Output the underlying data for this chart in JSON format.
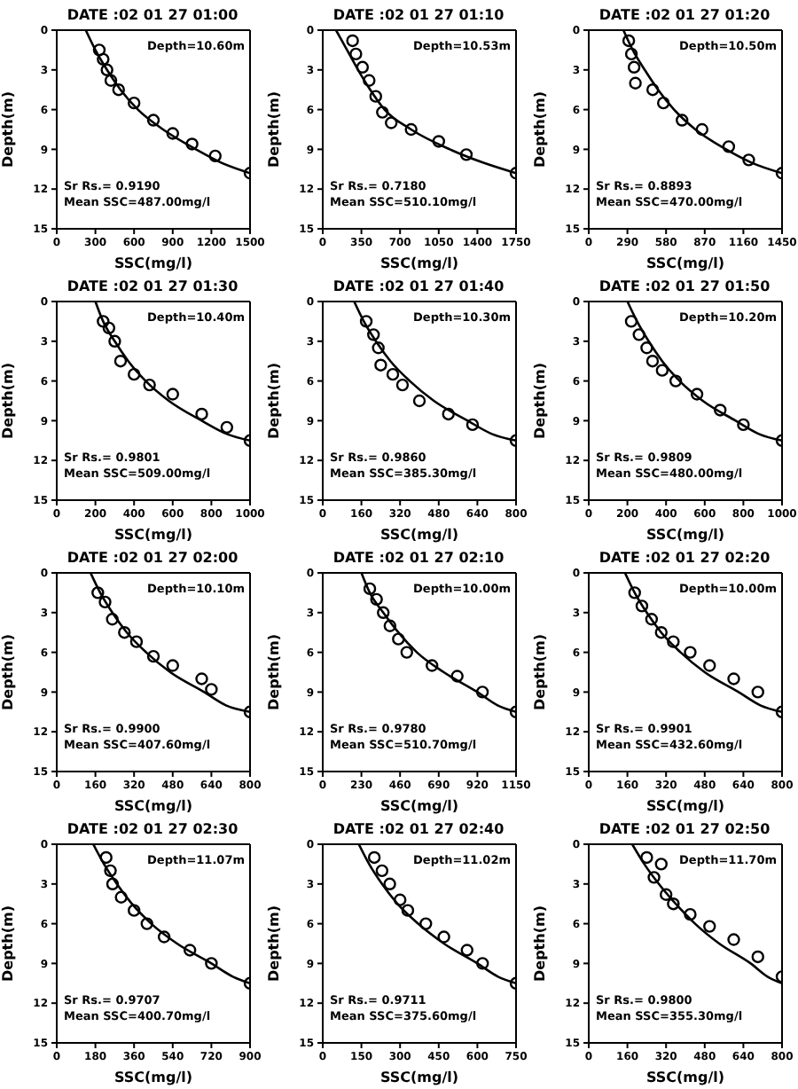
{
  "chart_data": [
    {
      "type": "scatter",
      "title": "DATE :02 01 27 01:00",
      "xlabel": "SSC(mg/l)",
      "ylabel": "Depth(m)",
      "xlim": [
        0,
        1500
      ],
      "xticks": [
        0,
        300,
        600,
        900,
        1200,
        1500
      ],
      "ylim": [
        15,
        0
      ],
      "yticks": [
        0,
        3,
        6,
        9,
        12,
        15
      ],
      "annotations": [
        "Depth=10.60m",
        "Sr Rs.= 0.9190",
        "Mean SSC=487.00mg/l"
      ],
      "series": [
        {
          "type": "line",
          "color": "#000000",
          "line_style": "solid",
          "marker": "none",
          "x": [
            225,
            300,
            390,
            495,
            630,
            825,
            1080,
            1275,
            1500
          ],
          "values": [
            0,
            1.5,
            3,
            4.5,
            6,
            7.5,
            9,
            10,
            10.8
          ]
        },
        {
          "color": "#000000",
          "marker": "circle",
          "x": [
            330,
            360,
            390,
            420,
            480,
            600,
            750,
            900,
            1050,
            1230,
            1500
          ],
          "values": [
            1.5,
            2.2,
            3,
            3.8,
            4.5,
            5.5,
            6.8,
            7.8,
            8.6,
            9.5,
            10.8
          ]
        }
      ]
    },
    {
      "type": "scatter",
      "title": "DATE :02 01 27 01:10",
      "xlabel": "SSC(mg/l)",
      "ylabel": "Depth(m)",
      "xlim": [
        0,
        1750
      ],
      "xticks": [
        0,
        350,
        700,
        1050,
        1400,
        1750
      ],
      "ylim": [
        15,
        0
      ],
      "yticks": [
        0,
        3,
        6,
        9,
        12,
        15
      ],
      "annotations": [
        "Depth=10.53m",
        "Sr Rs.= 0.7180",
        "Mean SSC=510.10mg/l"
      ],
      "series": [
        {
          "type": "line",
          "color": "#000000",
          "line_style": "solid",
          "marker": "none",
          "x": [
            120,
            220,
            320,
            430,
            560,
            800,
            1150,
            1450,
            1750
          ],
          "values": [
            0,
            1.5,
            3,
            4.5,
            6,
            7.5,
            9,
            10,
            10.8
          ]
        },
        {
          "color": "#000000",
          "marker": "circle",
          "x": [
            270,
            300,
            360,
            420,
            480,
            540,
            620,
            800,
            1050,
            1300,
            1750
          ],
          "values": [
            0.8,
            1.8,
            2.8,
            3.8,
            5,
            6.2,
            7,
            7.5,
            8.4,
            9.4,
            10.8
          ]
        }
      ]
    },
    {
      "type": "scatter",
      "title": "DATE :02 01 27 01:20",
      "xlabel": "SSC(mg/l)",
      "ylabel": "Depth(m)",
      "xlim": [
        0,
        1450
      ],
      "xticks": [
        0,
        290,
        580,
        870,
        1160,
        1450
      ],
      "ylim": [
        15,
        0
      ],
      "yticks": [
        0,
        3,
        6,
        9,
        12,
        15
      ],
      "annotations": [
        "Depth=10.50m",
        "Sr Rs.= 0.8893",
        "Mean SSC=470.00mg/l"
      ],
      "series": [
        {
          "type": "line",
          "color": "#000000",
          "line_style": "solid",
          "marker": "none",
          "x": [
            260,
            330,
            420,
            520,
            640,
            800,
            1030,
            1220,
            1450
          ],
          "values": [
            0,
            1.5,
            3,
            4.5,
            6,
            7.5,
            9,
            10,
            10.8
          ]
        },
        {
          "color": "#000000",
          "marker": "circle",
          "x": [
            300,
            320,
            340,
            350,
            480,
            560,
            700,
            850,
            1050,
            1200,
            1450
          ],
          "values": [
            0.8,
            1.8,
            2.8,
            4,
            4.5,
            5.5,
            6.8,
            7.5,
            8.8,
            9.8,
            10.8
          ]
        }
      ]
    },
    {
      "type": "scatter",
      "title": "DATE :02 01 27 01:30",
      "xlabel": "SSC(mg/l)",
      "ylabel": "Depth(m)",
      "xlim": [
        0,
        1000
      ],
      "xticks": [
        0,
        200,
        400,
        600,
        800,
        1000
      ],
      "ylim": [
        15,
        0
      ],
      "yticks": [
        0,
        3,
        6,
        9,
        12,
        15
      ],
      "annotations": [
        "Depth=10.40m",
        "Sr Rs.= 0.9801",
        "Mean SSC=509.00mg/l"
      ],
      "series": [
        {
          "type": "line",
          "color": "#000000",
          "line_style": "solid",
          "marker": "none",
          "x": [
            200,
            240,
            300,
            370,
            460,
            580,
            750,
            880,
            1000
          ],
          "values": [
            0,
            1.5,
            3,
            4.5,
            6,
            7.5,
            9,
            10,
            10.5
          ]
        },
        {
          "color": "#000000",
          "marker": "circle",
          "x": [
            240,
            270,
            300,
            330,
            400,
            480,
            600,
            750,
            880,
            1000
          ],
          "values": [
            1.5,
            2,
            3,
            4.5,
            5.5,
            6.3,
            7,
            8.5,
            9.5,
            10.5
          ]
        }
      ]
    },
    {
      "type": "scatter",
      "title": "DATE :02 01 27 01:40",
      "xlabel": "SSC(mg/l)",
      "ylabel": "Depth(m)",
      "xlim": [
        0,
        800
      ],
      "xticks": [
        0,
        160,
        320,
        480,
        640,
        800
      ],
      "ylim": [
        15,
        0
      ],
      "yticks": [
        0,
        3,
        6,
        9,
        12,
        15
      ],
      "annotations": [
        "Depth=10.30m",
        "Sr Rs.= 0.9860",
        "Mean SSC=385.30mg/l"
      ],
      "series": [
        {
          "type": "line",
          "color": "#000000",
          "line_style": "solid",
          "marker": "none",
          "x": [
            130,
            170,
            220,
            280,
            360,
            460,
            600,
            700,
            800
          ],
          "values": [
            0,
            1.5,
            3,
            4.5,
            6,
            7.5,
            9,
            10,
            10.5
          ]
        },
        {
          "color": "#000000",
          "marker": "circle",
          "x": [
            180,
            210,
            230,
            240,
            290,
            330,
            400,
            520,
            620,
            800
          ],
          "values": [
            1.5,
            2.5,
            3.5,
            4.8,
            5.5,
            6.3,
            7.5,
            8.5,
            9.3,
            10.5
          ]
        }
      ]
    },
    {
      "type": "scatter",
      "title": "DATE :02 01 27 01:50",
      "xlabel": "SSC(mg/l)",
      "ylabel": "Depth(m)",
      "xlim": [
        0,
        1000
      ],
      "xticks": [
        0,
        200,
        400,
        600,
        800,
        1000
      ],
      "ylim": [
        15,
        0
      ],
      "yticks": [
        0,
        3,
        6,
        9,
        12,
        15
      ],
      "annotations": [
        "Depth=10.20m",
        "Sr Rs.= 0.9809",
        "Mean SSC=480.00mg/l"
      ],
      "series": [
        {
          "type": "line",
          "color": "#000000",
          "line_style": "solid",
          "marker": "none",
          "x": [
            200,
            250,
            310,
            380,
            470,
            590,
            760,
            880,
            1000
          ],
          "values": [
            0,
            1.5,
            3,
            4.5,
            6,
            7.5,
            9,
            10,
            10.5
          ]
        },
        {
          "color": "#000000",
          "marker": "circle",
          "x": [
            220,
            260,
            300,
            330,
            380,
            450,
            560,
            680,
            800,
            1000
          ],
          "values": [
            1.5,
            2.5,
            3.5,
            4.5,
            5.2,
            6,
            7,
            8.2,
            9.3,
            10.5
          ]
        }
      ]
    },
    {
      "type": "scatter",
      "title": "DATE :02 01 27 02:00",
      "xlabel": "SSC(mg/l)",
      "ylabel": "Depth(m)",
      "xlim": [
        0,
        800
      ],
      "xticks": [
        0,
        160,
        320,
        480,
        640,
        800
      ],
      "ylim": [
        15,
        0
      ],
      "yticks": [
        0,
        3,
        6,
        9,
        12,
        15
      ],
      "annotations": [
        "Depth=10.10m",
        "Sr Rs.= 0.9900",
        "Mean SSC=407.60mg/l"
      ],
      "series": [
        {
          "type": "line",
          "color": "#000000",
          "line_style": "solid",
          "marker": "none",
          "x": [
            140,
            180,
            230,
            290,
            370,
            470,
            610,
            700,
            800
          ],
          "values": [
            0,
            1.5,
            3,
            4.5,
            6,
            7.5,
            9,
            10,
            10.5
          ]
        },
        {
          "color": "#000000",
          "marker": "circle",
          "x": [
            170,
            200,
            230,
            280,
            330,
            400,
            480,
            600,
            640,
            800
          ],
          "values": [
            1.5,
            2.2,
            3.5,
            4.5,
            5.2,
            6.3,
            7,
            8,
            8.8,
            10.5
          ]
        }
      ]
    },
    {
      "type": "scatter",
      "title": "DATE :02 01 27 02:10",
      "xlabel": "SSC(mg/l)",
      "ylabel": "Depth(m)",
      "xlim": [
        0,
        1150
      ],
      "xticks": [
        0,
        230,
        460,
        690,
        920,
        1150
      ],
      "ylim": [
        15,
        0
      ],
      "yticks": [
        0,
        3,
        6,
        9,
        12,
        15
      ],
      "annotations": [
        "Depth=10.00m",
        "Sr Rs.= 0.9780",
        "Mean SSC=510.70mg/l"
      ],
      "series": [
        {
          "type": "line",
          "color": "#000000",
          "line_style": "solid",
          "marker": "none",
          "x": [
            230,
            280,
            360,
            450,
            560,
            720,
            920,
            1040,
            1150
          ],
          "values": [
            0,
            1.5,
            3,
            4.5,
            6,
            7.5,
            9,
            10,
            10.5
          ]
        },
        {
          "color": "#000000",
          "marker": "circle",
          "x": [
            280,
            320,
            360,
            400,
            450,
            500,
            650,
            800,
            950,
            1150
          ],
          "values": [
            1.2,
            2,
            3,
            4,
            5,
            6,
            7,
            7.8,
            9,
            10.5
          ]
        }
      ]
    },
    {
      "type": "scatter",
      "title": "DATE :02 01 27 02:20",
      "xlabel": "SSC(mg/l)",
      "ylabel": "Depth(m)",
      "xlim": [
        0,
        800
      ],
      "xticks": [
        0,
        160,
        320,
        480,
        640,
        800
      ],
      "ylim": [
        15,
        0
      ],
      "yticks": [
        0,
        3,
        6,
        9,
        12,
        15
      ],
      "annotations": [
        "Depth=10.00m",
        "Sr Rs.= 0.9901",
        "Mean SSC=432.60mg/l"
      ],
      "series": [
        {
          "type": "line",
          "color": "#000000",
          "line_style": "solid",
          "marker": "none",
          "x": [
            150,
            190,
            240,
            300,
            380,
            480,
            620,
            710,
            800
          ],
          "values": [
            0,
            1.5,
            3,
            4.5,
            6,
            7.5,
            9,
            10,
            10.5
          ]
        },
        {
          "color": "#000000",
          "marker": "circle",
          "x": [
            190,
            220,
            260,
            300,
            350,
            420,
            500,
            600,
            700,
            800
          ],
          "values": [
            1.5,
            2.5,
            3.5,
            4.5,
            5.2,
            6,
            7,
            8,
            9,
            10.5
          ]
        }
      ]
    },
    {
      "type": "scatter",
      "title": "DATE :02 01 27 02:30",
      "xlabel": "SSC(mg/l)",
      "ylabel": "Depth(m)",
      "xlim": [
        0,
        900
      ],
      "xticks": [
        0,
        180,
        360,
        540,
        720,
        900
      ],
      "ylim": [
        15,
        0
      ],
      "yticks": [
        0,
        3,
        6,
        9,
        12,
        15
      ],
      "annotations": [
        "Depth=11.07m",
        "Sr Rs.= 0.9707",
        "Mean SSC=400.70mg/l"
      ],
      "series": [
        {
          "type": "line",
          "color": "#000000",
          "line_style": "solid",
          "marker": "none",
          "x": [
            170,
            220,
            280,
            350,
            440,
            560,
            720,
            820,
            900
          ],
          "values": [
            0,
            1.5,
            3,
            4.5,
            6,
            7.5,
            9,
            10,
            10.5
          ]
        },
        {
          "color": "#000000",
          "marker": "circle",
          "x": [
            230,
            250,
            260,
            300,
            360,
            420,
            500,
            620,
            720,
            900
          ],
          "values": [
            1,
            2,
            3,
            4,
            5,
            6,
            7,
            8,
            9,
            10.5
          ]
        }
      ]
    },
    {
      "type": "scatter",
      "title": "DATE :02 01 27 02:40",
      "xlabel": "SSC(mg/l)",
      "ylabel": "Depth(m)",
      "xlim": [
        0,
        750
      ],
      "xticks": [
        0,
        150,
        300,
        450,
        600,
        750
      ],
      "ylim": [
        15,
        0
      ],
      "yticks": [
        0,
        3,
        6,
        9,
        12,
        15
      ],
      "annotations": [
        "Depth=11.02m",
        "Sr Rs.= 0.9711",
        "Mean SSC=375.60mg/l"
      ],
      "series": [
        {
          "type": "line",
          "color": "#000000",
          "line_style": "solid",
          "marker": "none",
          "x": [
            140,
            180,
            230,
            290,
            370,
            470,
            600,
            680,
            750
          ],
          "values": [
            0,
            1.5,
            3,
            4.5,
            6,
            7.5,
            9,
            10,
            10.5
          ]
        },
        {
          "color": "#000000",
          "marker": "circle",
          "x": [
            200,
            230,
            260,
            300,
            330,
            400,
            470,
            560,
            620,
            750
          ],
          "values": [
            1,
            2,
            3,
            4.2,
            5,
            6,
            7,
            8,
            9,
            10.5
          ]
        }
      ]
    },
    {
      "type": "scatter",
      "title": "DATE :02 01 27 02:50",
      "xlabel": "SSC(mg/l)",
      "ylabel": "Depth(m)",
      "xlim": [
        0,
        800
      ],
      "xticks": [
        0,
        160,
        320,
        480,
        640,
        800
      ],
      "ylim": [
        15,
        0
      ],
      "yticks": [
        0,
        3,
        6,
        9,
        12,
        15
      ],
      "annotations": [
        "Depth=11.70m",
        "Sr Rs.= 0.9800",
        "Mean SSC=355.30mg/l"
      ],
      "series": [
        {
          "type": "line",
          "color": "#000000",
          "line_style": "solid",
          "marker": "none",
          "x": [
            180,
            230,
            290,
            360,
            440,
            540,
            670,
            740,
            800
          ],
          "values": [
            0,
            1.5,
            3,
            4.5,
            6,
            7.5,
            9,
            10,
            10.5
          ]
        },
        {
          "color": "#000000",
          "marker": "circle",
          "x": [
            240,
            300,
            270,
            320,
            350,
            420,
            500,
            600,
            700,
            800
          ],
          "values": [
            1,
            1.5,
            2.5,
            3.8,
            4.5,
            5.3,
            6.2,
            7.2,
            8.5,
            10
          ]
        }
      ]
    }
  ]
}
